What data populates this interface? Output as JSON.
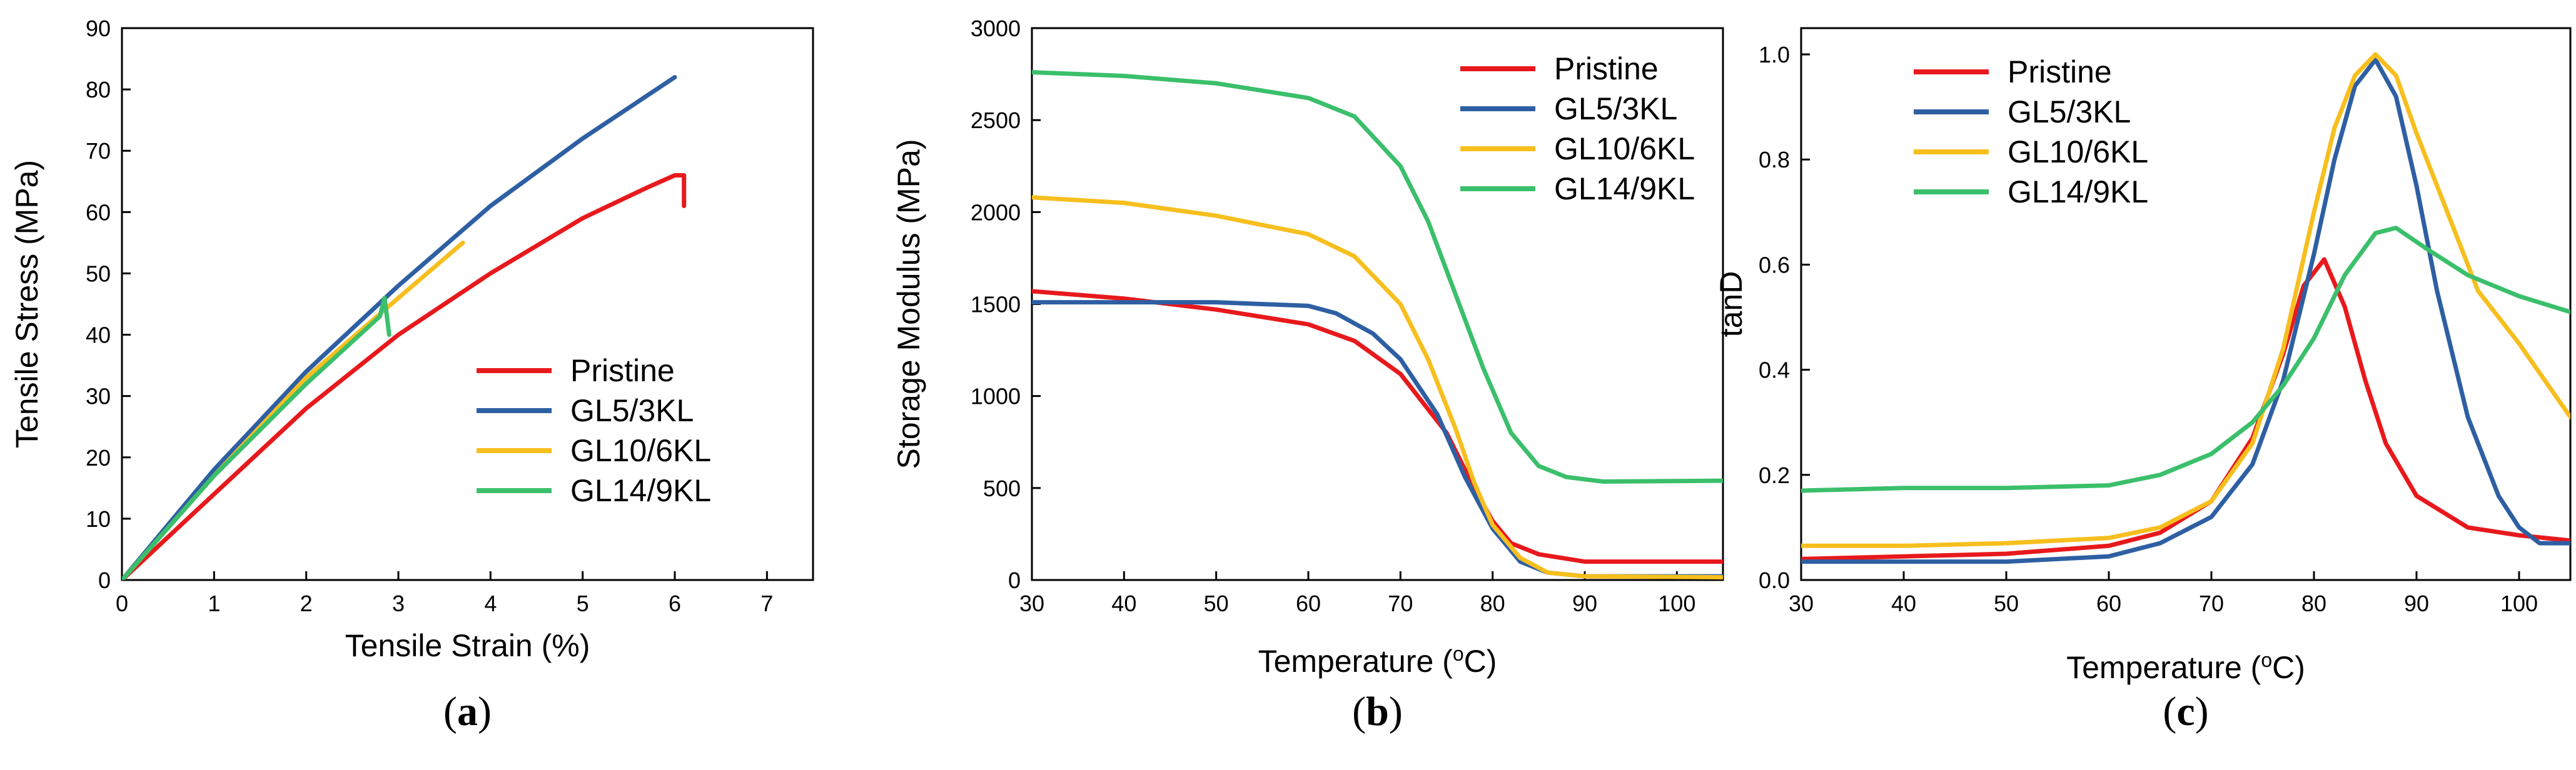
{
  "colors": {
    "Pristine": "#e8191c",
    "GL5/3KL": "#2e5fa3",
    "GL10/6KL": "#f7bf1e",
    "GL14/9KL": "#3bbf6b"
  },
  "chart_data": [
    {
      "id": "a",
      "type": "line",
      "label_letter": "a",
      "xlabel": "Tensile Strain (%)",
      "ylabel": "Tensile Stress (MPa)",
      "xlim": [
        0,
        7.5
      ],
      "ylim": [
        0,
        90
      ],
      "xticks": [
        0,
        1,
        2,
        3,
        4,
        5,
        6,
        7
      ],
      "yticks": [
        0,
        10,
        20,
        30,
        40,
        50,
        60,
        70,
        80,
        90
      ],
      "legend_position": "bottom-right",
      "series": [
        {
          "name": "Pristine",
          "x": [
            0,
            1,
            2,
            3,
            4,
            5,
            5.7,
            6.0,
            6.1,
            6.1
          ],
          "y": [
            0,
            14,
            28,
            40,
            50,
            59,
            64,
            66,
            66,
            61
          ]
        },
        {
          "name": "GL5/3KL",
          "x": [
            0,
            1,
            2,
            3,
            4,
            5,
            6.0
          ],
          "y": [
            0,
            18,
            34,
            48,
            61,
            72,
            82
          ]
        },
        {
          "name": "GL10/6KL",
          "x": [
            0,
            1,
            2,
            3,
            3.7
          ],
          "y": [
            0,
            17,
            33,
            46,
            55
          ]
        },
        {
          "name": "GL14/9KL",
          "x": [
            0,
            1,
            2,
            2.8,
            2.85,
            2.9
          ],
          "y": [
            0,
            17,
            32,
            43,
            46,
            40
          ]
        }
      ]
    },
    {
      "id": "b",
      "type": "line",
      "label_letter": "b",
      "xlabel": "Temperature (°C)",
      "xlabel_pre": "Temperature (",
      "xlabel_sup": "o",
      "xlabel_post": "C)",
      "ylabel": "Storage Modulus (MPa)",
      "xlim": [
        30,
        105
      ],
      "ylim": [
        0,
        3000
      ],
      "xticks": [
        30,
        40,
        50,
        60,
        70,
        80,
        90,
        100
      ],
      "yticks": [
        0,
        500,
        1000,
        1500,
        2000,
        2500,
        3000
      ],
      "legend_position": "top-right",
      "series": [
        {
          "name": "Pristine",
          "x": [
            30,
            40,
            50,
            60,
            65,
            70,
            75,
            78,
            80,
            82,
            85,
            90,
            95,
            105
          ],
          "y": [
            1570,
            1530,
            1470,
            1390,
            1300,
            1120,
            800,
            500,
            320,
            200,
            140,
            100,
            100,
            100
          ]
        },
        {
          "name": "GL5/3KL",
          "x": [
            30,
            40,
            50,
            60,
            63,
            67,
            70,
            74,
            77,
            80,
            83,
            86,
            90,
            105
          ],
          "y": [
            1510,
            1510,
            1510,
            1490,
            1450,
            1340,
            1200,
            900,
            560,
            280,
            100,
            40,
            20,
            20
          ]
        },
        {
          "name": "GL10/6KL",
          "x": [
            30,
            40,
            50,
            60,
            65,
            70,
            73,
            76,
            78,
            80,
            83,
            86,
            90,
            105
          ],
          "y": [
            2080,
            2050,
            1980,
            1880,
            1760,
            1500,
            1200,
            820,
            530,
            300,
            120,
            40,
            20,
            15
          ]
        },
        {
          "name": "GL14/9KL",
          "x": [
            30,
            40,
            50,
            60,
            65,
            70,
            73,
            76,
            79,
            82,
            85,
            88,
            92,
            105
          ],
          "y": [
            2760,
            2740,
            2700,
            2620,
            2520,
            2250,
            1950,
            1550,
            1150,
            800,
            620,
            560,
            535,
            540
          ]
        }
      ]
    },
    {
      "id": "c",
      "type": "line",
      "label_letter": "c",
      "xlabel": "Temperature (°C)",
      "xlabel_pre": "Temperature (",
      "xlabel_sup": "o",
      "xlabel_post": "C)",
      "ylabel": "tanD",
      "xlim": [
        30,
        105
      ],
      "ylim": [
        0,
        1.05
      ],
      "xticks": [
        30,
        40,
        50,
        60,
        70,
        80,
        90,
        100
      ],
      "yticks": [
        0.0,
        0.2,
        0.4,
        0.6,
        0.8,
        1.0
      ],
      "ytick_labels": [
        "0.0",
        "0.2",
        "0.4",
        "0.6",
        "0.8",
        "1.0"
      ],
      "legend_position": "top-left",
      "series": [
        {
          "name": "Pristine",
          "x": [
            30,
            40,
            50,
            60,
            65,
            70,
            74,
            77,
            79,
            81,
            83,
            85,
            87,
            90,
            95,
            100,
            105
          ],
          "y": [
            0.04,
            0.045,
            0.05,
            0.065,
            0.09,
            0.15,
            0.27,
            0.43,
            0.56,
            0.61,
            0.52,
            0.38,
            0.26,
            0.16,
            0.1,
            0.085,
            0.075
          ]
        },
        {
          "name": "GL5/3KL",
          "x": [
            30,
            40,
            50,
            60,
            65,
            70,
            74,
            77,
            80,
            82,
            84,
            86,
            88,
            90,
            92,
            95,
            98,
            100,
            102,
            105
          ],
          "y": [
            0.035,
            0.035,
            0.035,
            0.045,
            0.07,
            0.12,
            0.22,
            0.38,
            0.62,
            0.8,
            0.94,
            0.99,
            0.92,
            0.75,
            0.55,
            0.31,
            0.16,
            0.1,
            0.07,
            0.07
          ]
        },
        {
          "name": "GL10/6KL",
          "x": [
            30,
            40,
            50,
            60,
            65,
            70,
            74,
            77,
            80,
            82,
            84,
            86,
            88,
            90,
            93,
            96,
            100,
            105
          ],
          "y": [
            0.065,
            0.065,
            0.07,
            0.08,
            0.1,
            0.15,
            0.26,
            0.44,
            0.7,
            0.86,
            0.96,
            1.0,
            0.96,
            0.85,
            0.7,
            0.55,
            0.45,
            0.31
          ]
        },
        {
          "name": "GL14/9KL",
          "x": [
            30,
            40,
            50,
            60,
            65,
            70,
            74,
            77,
            80,
            83,
            86,
            88,
            91,
            95,
            100,
            105
          ],
          "y": [
            0.17,
            0.175,
            0.175,
            0.18,
            0.2,
            0.24,
            0.3,
            0.37,
            0.46,
            0.58,
            0.66,
            0.67,
            0.63,
            0.58,
            0.54,
            0.51
          ]
        }
      ]
    }
  ]
}
